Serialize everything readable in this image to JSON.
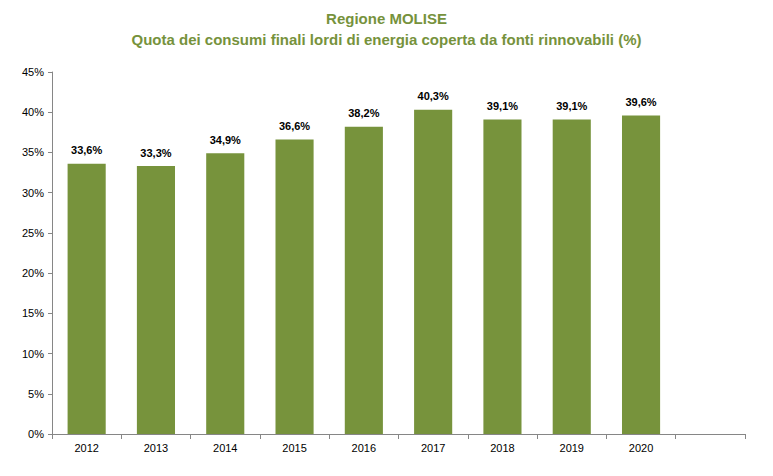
{
  "chart_data": {
    "type": "bar",
    "title": "Regione MOLISE",
    "subtitle": "Quota dei consumi finali lordi di energia coperta da fonti rinnovabili (%)",
    "categories": [
      "2012",
      "2013",
      "2014",
      "2015",
      "2016",
      "2017",
      "2018",
      "2019",
      "2020",
      null
    ],
    "values": [
      33.6,
      33.3,
      34.9,
      36.6,
      38.2,
      40.3,
      39.1,
      39.1,
      39.6,
      null
    ],
    "value_labels": [
      "33,6%",
      "33,3%",
      "34,9%",
      "36,6%",
      "38,2%",
      "40,3%",
      "39,1%",
      "39,1%",
      "39,6%",
      null
    ],
    "color": "#77933c",
    "ylim": [
      0,
      45
    ],
    "yticks": [
      {
        "value": 0,
        "label": "0%"
      },
      {
        "value": 5,
        "label": "5%"
      },
      {
        "value": 10,
        "label": "10%"
      },
      {
        "value": 15,
        "label": "15%"
      },
      {
        "value": 20,
        "label": "20%"
      },
      {
        "value": 25,
        "label": "25%"
      },
      {
        "value": 30,
        "label": "30%"
      },
      {
        "value": 35,
        "label": "35%"
      },
      {
        "value": 40,
        "label": "40%"
      },
      {
        "value": 45,
        "label": "45%"
      }
    ],
    "grid": false,
    "data_labels": true
  }
}
